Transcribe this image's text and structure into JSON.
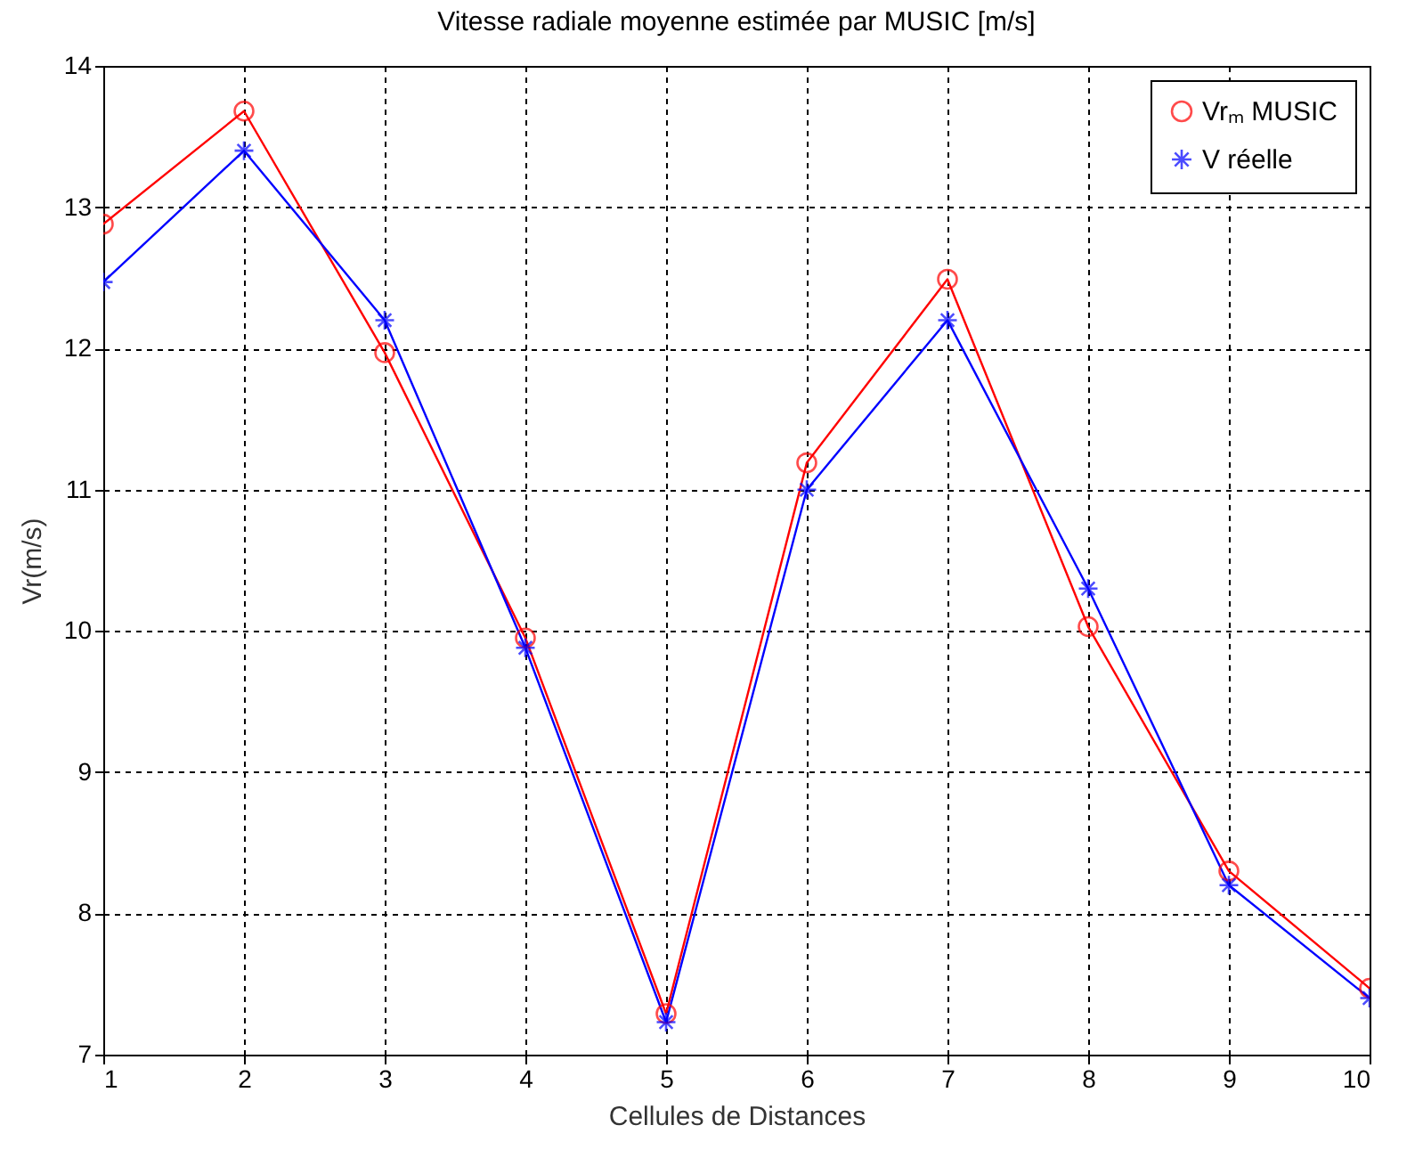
{
  "chart_data": {
    "type": "line",
    "title": "Vitesse radiale moyenne estimée par MUSIC [m/s]",
    "xlabel": "Cellules de Distances",
    "ylabel": "Vr(m/s)",
    "x": [
      1,
      2,
      3,
      4,
      5,
      6,
      7,
      8,
      9,
      10
    ],
    "series": [
      {
        "name": "Vrₘ MUSIC",
        "color": "#ff0000",
        "marker": "circle",
        "values": [
          12.88,
          13.68,
          11.97,
          9.95,
          7.29,
          11.19,
          12.49,
          10.03,
          8.3,
          7.47
        ]
      },
      {
        "name": "V réelle",
        "color": "#0000ff",
        "marker": "cross",
        "values": [
          12.47,
          13.4,
          12.2,
          9.88,
          7.23,
          11.0,
          12.2,
          10.3,
          8.2,
          7.4
        ]
      }
    ],
    "xlim": [
      1,
      10
    ],
    "ylim": [
      7,
      14
    ],
    "xticks": [
      1,
      2,
      3,
      4,
      5,
      6,
      7,
      8,
      9,
      10
    ],
    "yticks": [
      7,
      8,
      9,
      10,
      11,
      12,
      13,
      14
    ],
    "grid": true,
    "legend": "top right"
  }
}
